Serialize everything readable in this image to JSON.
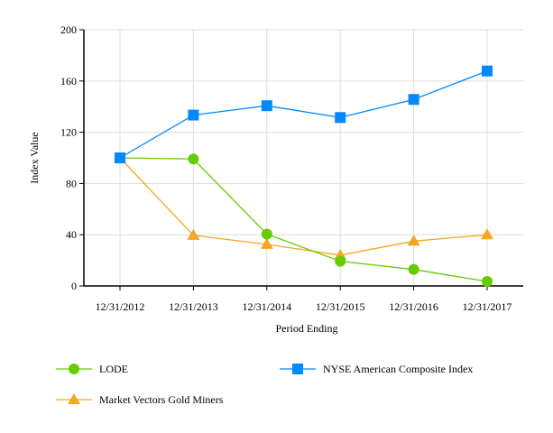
{
  "chart_data": {
    "type": "line",
    "title": "",
    "xlabel": "Period Ending",
    "ylabel": "Index Value",
    "categories": [
      "12/31/2012",
      "12/31/2013",
      "12/31/2014",
      "12/31/2015",
      "12/31/2016",
      "12/31/2017"
    ],
    "ylim": [
      0,
      200
    ],
    "yticks": [
      0,
      40,
      80,
      120,
      160,
      200
    ],
    "grid": true,
    "legend_placement": "bottom",
    "series": [
      {
        "name": "LODE",
        "color": "#66cc00",
        "marker": "circle",
        "values": [
          100,
          99.1,
          40.5,
          19.3,
          12.9,
          3.5
        ]
      },
      {
        "name": "NYSE American Composite Index",
        "color": "#0088ff",
        "marker": "square",
        "values": [
          100,
          133.4,
          140.7,
          131.5,
          145.6,
          167.8
        ]
      },
      {
        "name": "Market Vectors Gold Miners",
        "color": "#f5a623",
        "marker": "triangle",
        "values": [
          100,
          39.5,
          32.5,
          24,
          35,
          40
        ]
      }
    ]
  }
}
